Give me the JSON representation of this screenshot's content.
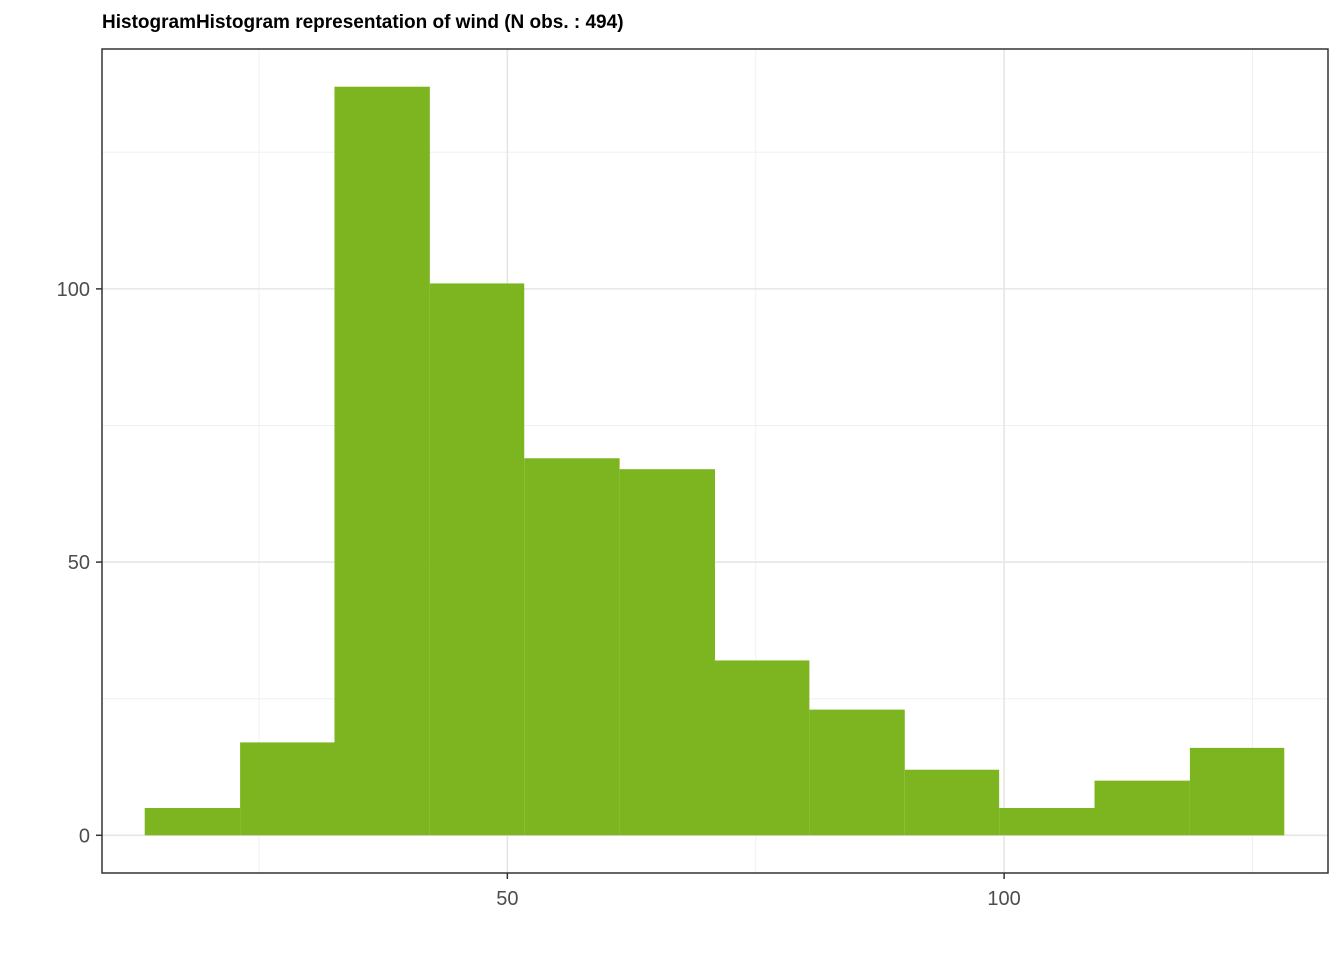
{
  "chart_data": {
    "type": "bar",
    "title": "HistogramHistogram representation of wind (N obs. : 494)",
    "xlabel": "",
    "ylabel": "",
    "bins": [
      {
        "x0": 13.5,
        "x1": 23.1,
        "count": 5
      },
      {
        "x0": 23.1,
        "x1": 32.6,
        "count": 17
      },
      {
        "x0": 32.6,
        "x1": 42.2,
        "count": 137
      },
      {
        "x0": 42.2,
        "x1": 51.7,
        "count": 101
      },
      {
        "x0": 51.7,
        "x1": 61.3,
        "count": 69
      },
      {
        "x0": 61.3,
        "x1": 70.9,
        "count": 67
      },
      {
        "x0": 70.9,
        "x1": 80.4,
        "count": 32
      },
      {
        "x0": 80.4,
        "x1": 90.0,
        "count": 23
      },
      {
        "x0": 90.0,
        "x1": 99.5,
        "count": 12
      },
      {
        "x0": 99.5,
        "x1": 109.1,
        "count": 5
      },
      {
        "x0": 109.1,
        "x1": 118.7,
        "count": 10
      },
      {
        "x0": 118.7,
        "x1": 128.2,
        "count": 16
      }
    ],
    "xlim": [
      9.2,
      132.6
    ],
    "ylim": [
      -6.9,
      143.9
    ],
    "xticks": [
      50,
      100
    ],
    "xticks_minor": [
      25,
      75,
      125
    ],
    "yticks": [
      0,
      50,
      100
    ],
    "yticks_minor": [
      25,
      75,
      125
    ],
    "grid": true,
    "bar_color": "#7cb51f"
  }
}
